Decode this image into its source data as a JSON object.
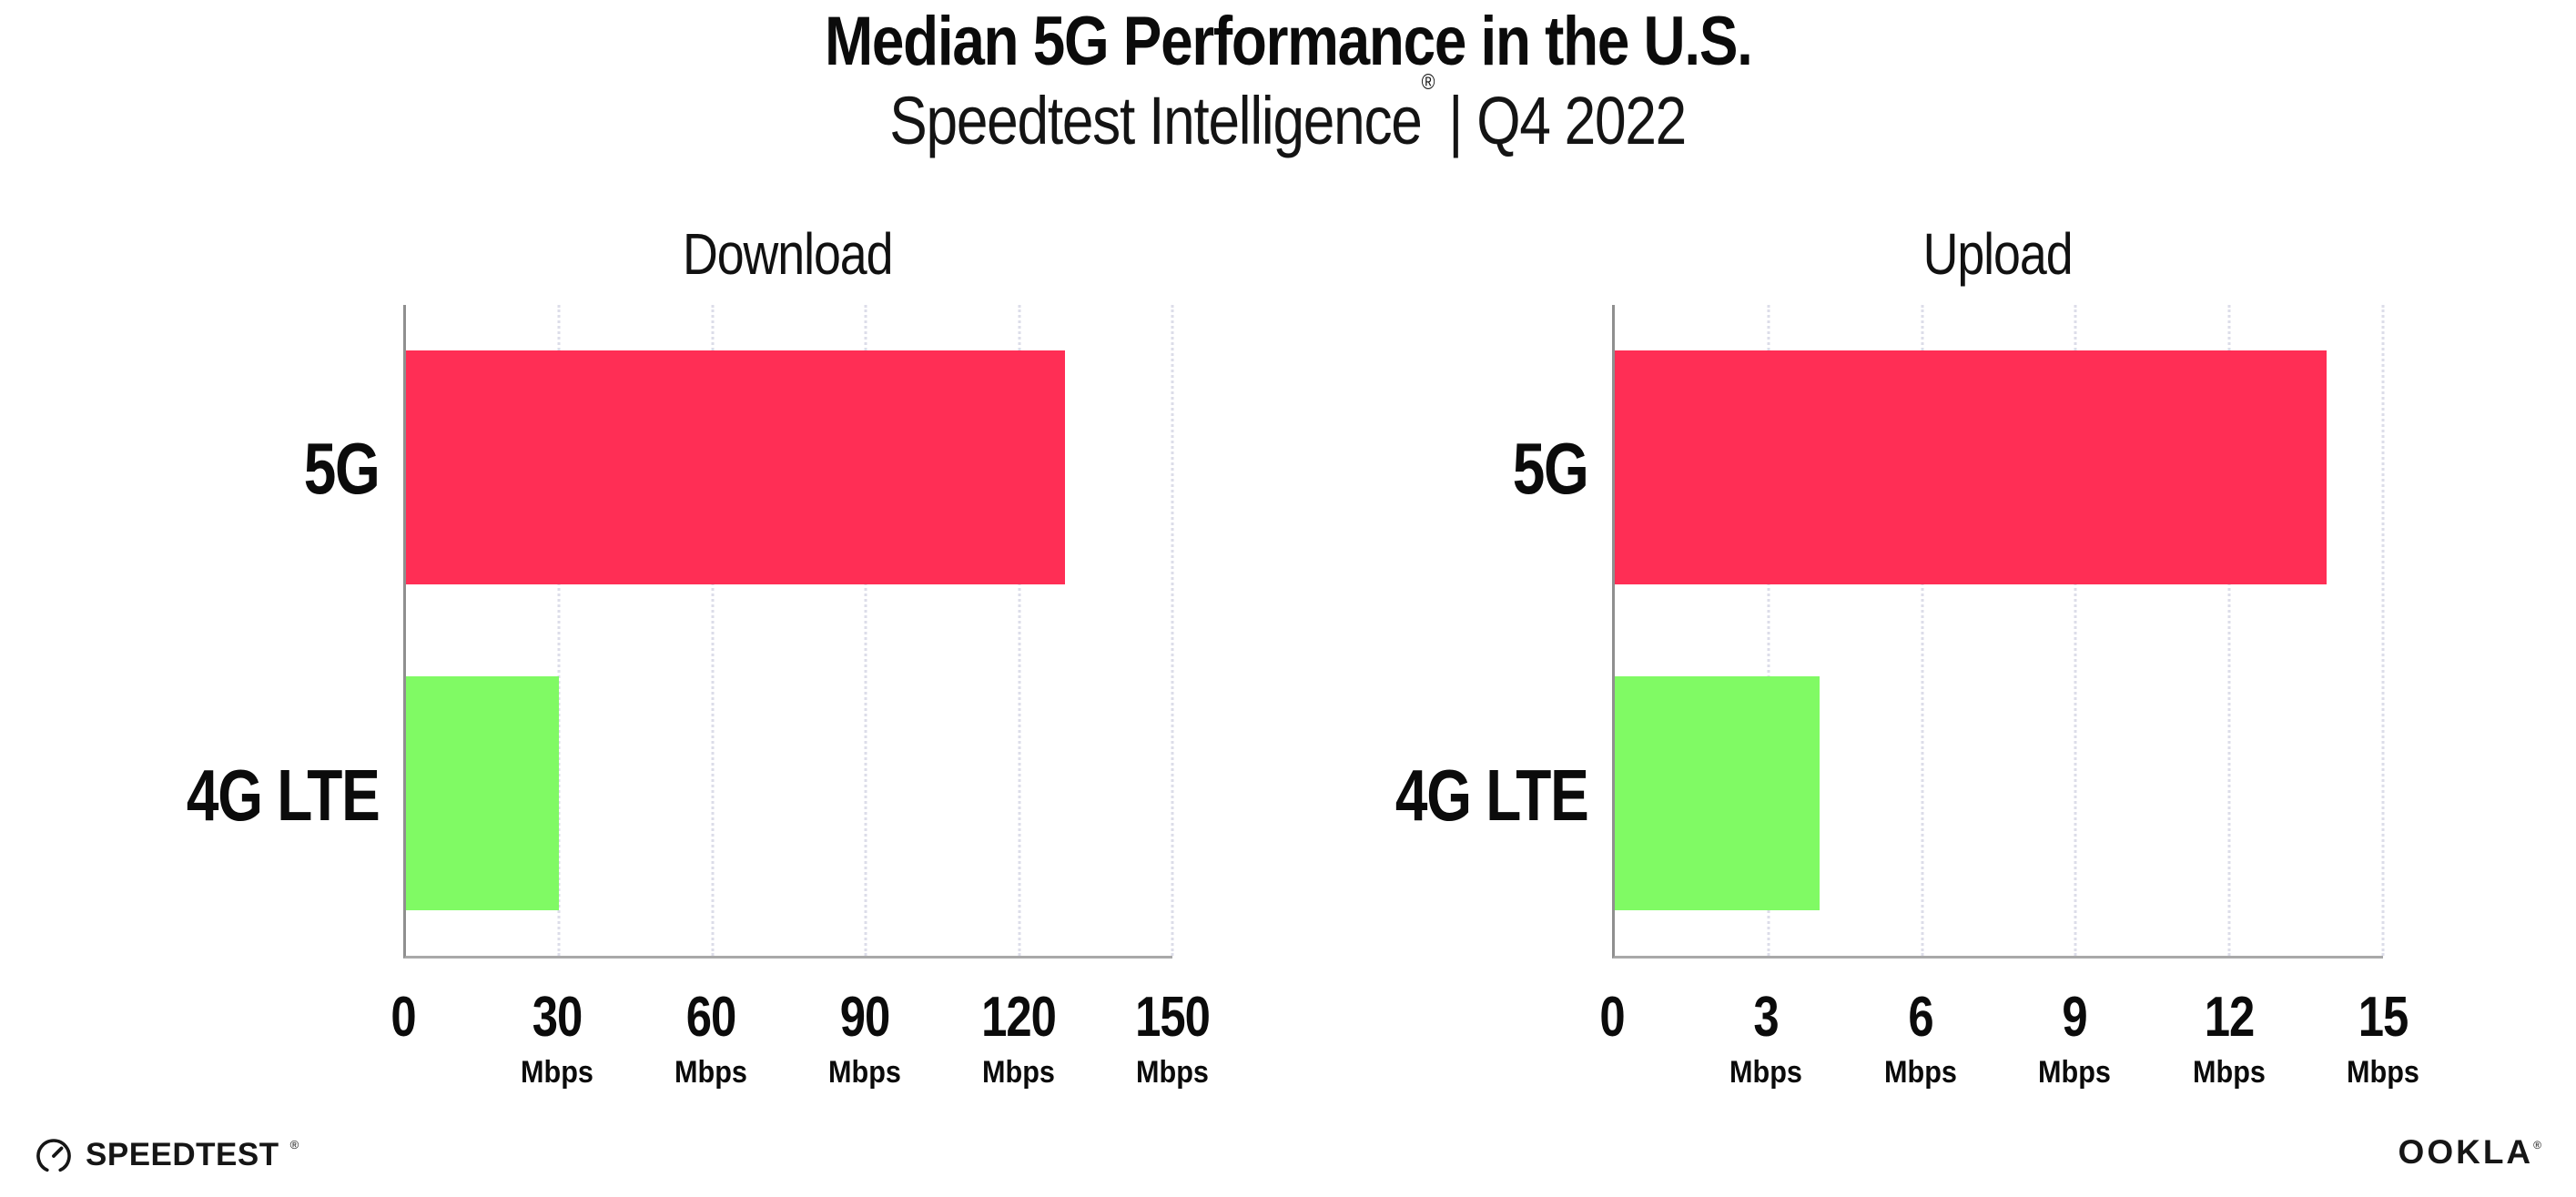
{
  "header": {
    "title": "Median 5G Performance in the U.S.",
    "subtitle_brand": "Speedtest Intelligence",
    "subtitle_reg": "®",
    "subtitle_rest": " | Q4 2022"
  },
  "colors": {
    "bar_5g": "#ff2e55",
    "bar_4g_lte": "#80fa64",
    "axis": "#8f8f8f",
    "gridline": "#dcdde9",
    "text": "#0b0b0b"
  },
  "chart_data": [
    {
      "type": "bar",
      "orientation": "horizontal",
      "title": "Download",
      "categories": [
        "5G",
        "4G LTE"
      ],
      "values": [
        129,
        30
      ],
      "unit": "Mbps",
      "xlim": [
        0,
        150
      ],
      "grid": "vertical-dotted",
      "legend": "none",
      "bar_colors": [
        "#ff2e55",
        "#80fa64"
      ],
      "ticks": [
        {
          "value": 0,
          "label": "0",
          "unit": ""
        },
        {
          "value": 30,
          "label": "30",
          "unit": "Mbps"
        },
        {
          "value": 60,
          "label": "60",
          "unit": "Mbps"
        },
        {
          "value": 90,
          "label": "90",
          "unit": "Mbps"
        },
        {
          "value": 120,
          "label": "120",
          "unit": "Mbps"
        },
        {
          "value": 150,
          "label": "150",
          "unit": "Mbps"
        }
      ]
    },
    {
      "type": "bar",
      "orientation": "horizontal",
      "title": "Upload",
      "categories": [
        "5G",
        "4G LTE"
      ],
      "values": [
        13.9,
        4
      ],
      "unit": "Mbps",
      "xlim": [
        0,
        15
      ],
      "grid": "vertical-dotted",
      "legend": "none",
      "bar_colors": [
        "#ff2e55",
        "#80fa64"
      ],
      "ticks": [
        {
          "value": 0,
          "label": "0",
          "unit": ""
        },
        {
          "value": 3,
          "label": "3",
          "unit": "Mbps"
        },
        {
          "value": 6,
          "label": "6",
          "unit": "Mbps"
        },
        {
          "value": 9,
          "label": "9",
          "unit": "Mbps"
        },
        {
          "value": 12,
          "label": "12",
          "unit": "Mbps"
        },
        {
          "value": 15,
          "label": "15",
          "unit": "Mbps"
        }
      ]
    }
  ],
  "footer": {
    "speedtest_label": "SPEEDTEST",
    "speedtest_reg": "®",
    "ookla_label": "OOKLA",
    "ookla_reg": "®"
  }
}
